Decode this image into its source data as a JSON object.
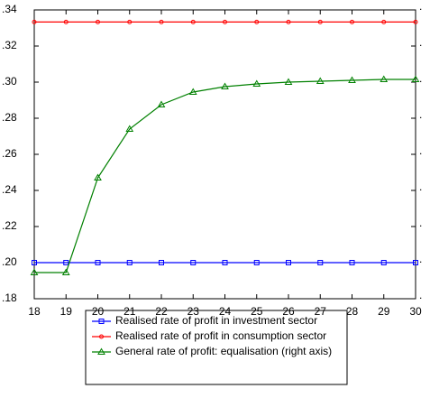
{
  "chart_data": {
    "type": "line",
    "x": [
      18,
      19,
      20,
      21,
      22,
      23,
      24,
      25,
      26,
      27,
      28,
      29,
      30
    ],
    "xlim": [
      18,
      30
    ],
    "xticks": [
      18,
      19,
      20,
      21,
      22,
      23,
      24,
      25,
      26,
      27,
      28,
      29,
      30
    ],
    "ylim": [
      0.18,
      0.34
    ],
    "yticks": [
      {
        "value": 0.18,
        "label": ".18"
      },
      {
        "value": 0.2,
        "label": ".20"
      },
      {
        "value": 0.22,
        "label": ".22"
      },
      {
        "value": 0.24,
        "label": ".24"
      },
      {
        "value": 0.26,
        "label": ".26"
      },
      {
        "value": 0.28,
        "label": ".28"
      },
      {
        "value": 0.3,
        "label": ".30"
      },
      {
        "value": 0.32,
        "label": ".32"
      },
      {
        "value": 0.34,
        "label": ".34"
      }
    ],
    "y2lim": [
      0.18,
      0.34
    ],
    "y2ticks": [
      {
        "value": 0.18,
        "label": "."
      },
      {
        "value": 0.2,
        "label": "."
      },
      {
        "value": 0.22,
        "label": "."
      },
      {
        "value": 0.24,
        "label": "."
      },
      {
        "value": 0.26,
        "label": "."
      },
      {
        "value": 0.28,
        "label": "."
      },
      {
        "value": 0.3,
        "label": "."
      },
      {
        "value": 0.32,
        "label": "."
      },
      {
        "value": 0.34,
        "label": "."
      }
    ],
    "series": [
      {
        "name": "Realised rate of profit in investment sector",
        "color": "#0000ff",
        "marker": "square",
        "values": [
          0.2,
          0.2,
          0.2,
          0.2,
          0.2,
          0.2,
          0.2,
          0.2,
          0.2,
          0.2,
          0.2,
          0.2,
          0.2
        ]
      },
      {
        "name": "Realised rate of profit in consumption sector",
        "color": "#ff0000",
        "marker": "circle",
        "values": [
          0.3333,
          0.3333,
          0.3333,
          0.3333,
          0.3333,
          0.3333,
          0.3333,
          0.3333,
          0.3333,
          0.3333,
          0.3333,
          0.3333,
          0.3333
        ]
      },
      {
        "name": "General rate of profit: equalisation (right axis)",
        "color": "#008000",
        "marker": "triangle",
        "axis": "y2",
        "values": [
          0.1945,
          0.1945,
          0.247,
          0.274,
          0.2875,
          0.2945,
          0.2975,
          0.299,
          0.3,
          0.3005,
          0.301,
          0.3015,
          0.3015
        ]
      }
    ]
  }
}
